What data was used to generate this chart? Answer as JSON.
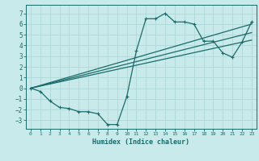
{
  "xlabel": "Humidex (Indice chaleur)",
  "background_color": "#c8eaea",
  "grid_color": "#b0d8d8",
  "line_color": "#1a6b6b",
  "xlim": [
    -0.5,
    23.5
  ],
  "ylim": [
    -3.8,
    7.8
  ],
  "xticks": [
    0,
    1,
    2,
    3,
    4,
    5,
    6,
    7,
    8,
    9,
    10,
    11,
    12,
    13,
    14,
    15,
    16,
    17,
    18,
    19,
    20,
    21,
    22,
    23
  ],
  "yticks": [
    -3,
    -2,
    -1,
    0,
    1,
    2,
    3,
    4,
    5,
    6,
    7
  ],
  "main_line": {
    "x": [
      0,
      1,
      2,
      3,
      4,
      5,
      6,
      7,
      8,
      9,
      10,
      11,
      12,
      13,
      14,
      15,
      16,
      17,
      18,
      19,
      20,
      21,
      22,
      23
    ],
    "y": [
      0.0,
      -0.3,
      -1.2,
      -1.8,
      -1.9,
      -2.2,
      -2.2,
      -2.4,
      -3.4,
      -3.4,
      -0.8,
      3.5,
      6.5,
      6.5,
      7.0,
      6.2,
      6.2,
      6.0,
      4.4,
      4.4,
      3.3,
      2.9,
      4.3,
      6.2
    ]
  },
  "straight_lines": [
    {
      "x": [
        0,
        23
      ],
      "y": [
        0.0,
        6.0
      ]
    },
    {
      "x": [
        0,
        23
      ],
      "y": [
        0.0,
        5.2
      ]
    },
    {
      "x": [
        0,
        23
      ],
      "y": [
        0.0,
        4.5
      ]
    }
  ]
}
